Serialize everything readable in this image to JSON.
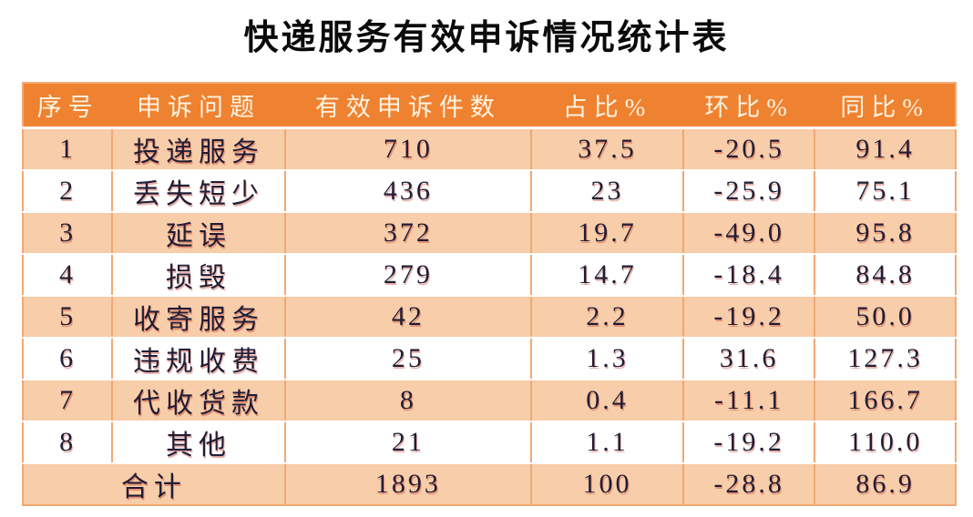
{
  "title": "快递服务有效申诉情况统计表",
  "colors": {
    "header_bg": "#ef8230",
    "header_text": "#fdf3e2",
    "row_alt_bg": "#f8cda9",
    "row_bg": "#ffffff",
    "grid": "#f2a873",
    "body_text": "#201d36",
    "text_shadow_red": "#c42f1d",
    "title_text": "#0b0b0b"
  },
  "table": {
    "headers": [
      "序号",
      "申诉问题",
      "有效申诉件数",
      "占比%",
      "环比%",
      "同比%"
    ],
    "rows": [
      {
        "no": "1",
        "issue": "投递服务",
        "count": "710",
        "share": "37.5",
        "mom": "-20.5",
        "yoy": "91.4"
      },
      {
        "no": "2",
        "issue": "丢失短少",
        "count": "436",
        "share": "23",
        "mom": "-25.9",
        "yoy": "75.1"
      },
      {
        "no": "3",
        "issue": "延误",
        "count": "372",
        "share": "19.7",
        "mom": "-49.0",
        "yoy": "95.8"
      },
      {
        "no": "4",
        "issue": "损毁",
        "count": "279",
        "share": "14.7",
        "mom": "-18.4",
        "yoy": "84.8"
      },
      {
        "no": "5",
        "issue": "收寄服务",
        "count": "42",
        "share": "2.2",
        "mom": "-19.2",
        "yoy": "50.0"
      },
      {
        "no": "6",
        "issue": "违规收费",
        "count": "25",
        "share": "1.3",
        "mom": "31.6",
        "yoy": "127.3"
      },
      {
        "no": "7",
        "issue": "代收货款",
        "count": "8",
        "share": "0.4",
        "mom": "-11.1",
        "yoy": "166.7"
      },
      {
        "no": "8",
        "issue": "其他",
        "count": "21",
        "share": "1.1",
        "mom": "-19.2",
        "yoy": "110.0"
      }
    ],
    "total": {
      "label": "合计",
      "count": "1893",
      "share": "100",
      "mom": "-28.8",
      "yoy": "86.9"
    }
  },
  "chart_data": {
    "type": "table",
    "title": "快递服务有效申诉情况统计表",
    "columns": [
      "序号",
      "申诉问题",
      "有效申诉件数",
      "占比%",
      "环比%",
      "同比%"
    ],
    "rows": [
      [
        1,
        "投递服务",
        710,
        37.5,
        -20.5,
        91.4
      ],
      [
        2,
        "丢失短少",
        436,
        23,
        -25.9,
        75.1
      ],
      [
        3,
        "延误",
        372,
        19.7,
        -49.0,
        95.8
      ],
      [
        4,
        "损毁",
        279,
        14.7,
        -18.4,
        84.8
      ],
      [
        5,
        "收寄服务",
        42,
        2.2,
        -19.2,
        50.0
      ],
      [
        6,
        "违规收费",
        25,
        1.3,
        31.6,
        127.3
      ],
      [
        7,
        "代收货款",
        8,
        0.4,
        -11.1,
        166.7
      ],
      [
        8,
        "其他",
        21,
        1.1,
        -19.2,
        110.0
      ]
    ],
    "total_row": [
      "合计",
      1893,
      100,
      -28.8,
      86.9
    ],
    "layout": {
      "zebra_striping": true,
      "header_style": "orange-with-white-text",
      "alt_row_color": "#f8cda9"
    }
  }
}
